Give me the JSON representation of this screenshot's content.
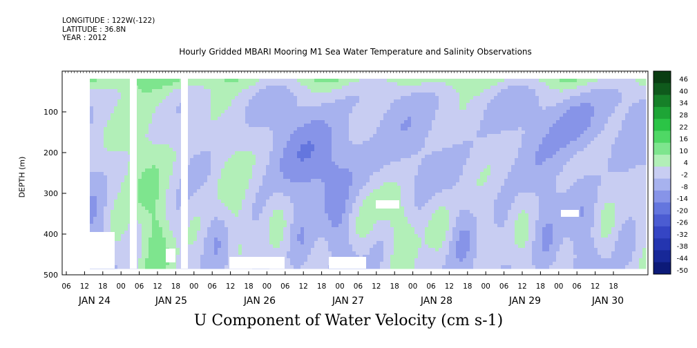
{
  "meta": {
    "longitude": "LONGITUDE : 122W(-122)",
    "latitude": "LATITUDE : 36.8N",
    "year": "YEAR : 2012"
  },
  "chart_data": {
    "type": "heatmap",
    "title": "Hourly Gridded MBARI Mooring M1 Sea Water Temperature and Salinity Observations",
    "xlabel": "U Component of Water Velocity (cm s-1)",
    "ylabel": "DEPTH (m)",
    "y_axis": {
      "range": [
        500,
        0
      ],
      "ticks": [
        100,
        200,
        300,
        400,
        500
      ],
      "inverted": true
    },
    "x_axis": {
      "hour_ticks": [
        "06",
        "12",
        "18",
        "00",
        "06",
        "12",
        "18",
        "00",
        "06",
        "12",
        "18",
        "00",
        "06",
        "12",
        "18",
        "00",
        "06",
        "12",
        "18",
        "00",
        "06",
        "12",
        "18",
        "00",
        "06",
        "12",
        "18",
        "00",
        "06",
        "12",
        "18"
      ],
      "day_labels": [
        "JAN 24",
        "JAN 25",
        "JAN 26",
        "JAN 27",
        "JAN 28",
        "JAN 29",
        "JAN 30"
      ]
    },
    "colorbar": {
      "levels": [
        46,
        40,
        34,
        28,
        22,
        16,
        10,
        4,
        -2,
        -8,
        -14,
        -20,
        -26,
        -32,
        -38,
        -44,
        -50
      ],
      "colors": [
        "#0a3d12",
        "#0f5a1c",
        "#168028",
        "#1ea536",
        "#2bc446",
        "#4fd865",
        "#7ee58e",
        "#b2efb8",
        "#c8cdf2",
        "#a7b2ee",
        "#8794e8",
        "#6476de",
        "#4b5cd2",
        "#3545c4",
        "#2435b0",
        "#172898",
        "#0c1a78"
      ]
    }
  }
}
